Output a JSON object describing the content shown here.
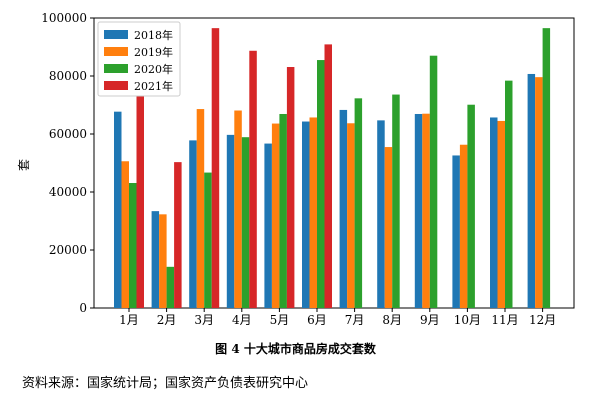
{
  "chart_data": {
    "type": "bar",
    "title": "",
    "xlabel": "",
    "ylabel": "套",
    "categories": [
      "1月",
      "2月",
      "3月",
      "4月",
      "5月",
      "6月",
      "7月",
      "8月",
      "9月",
      "10月",
      "11月",
      "12月"
    ],
    "ylim": [
      0,
      100000
    ],
    "yticks": [
      0,
      20000,
      40000,
      60000,
      80000,
      100000
    ],
    "legend_position": "top-left",
    "grid": false,
    "series": [
      {
        "name": "2018年",
        "color": "#1f77b4",
        "values": [
          67700,
          33400,
          57800,
          59700,
          56700,
          64300,
          68300,
          64700,
          66900,
          52600,
          65700,
          80700
        ]
      },
      {
        "name": "2019年",
        "color": "#ff7f0e",
        "values": [
          50600,
          32300,
          68600,
          68100,
          63600,
          65700,
          63700,
          55500,
          67000,
          56300,
          64500,
          79600
        ]
      },
      {
        "name": "2020年",
        "color": "#2ca02c",
        "values": [
          43100,
          14200,
          46700,
          58900,
          66900,
          85500,
          72300,
          73600,
          87000,
          70100,
          78400,
          96500
        ]
      },
      {
        "name": "2021年",
        "color": "#d62728",
        "values": [
          85200,
          50300,
          96500,
          88700,
          83100,
          90900,
          null,
          null,
          null,
          null,
          null,
          null
        ]
      }
    ]
  },
  "caption": "图 4 十大城市商品房成交套数",
  "source": "资料来源：国家统计局；国家资产负债表研究中心"
}
